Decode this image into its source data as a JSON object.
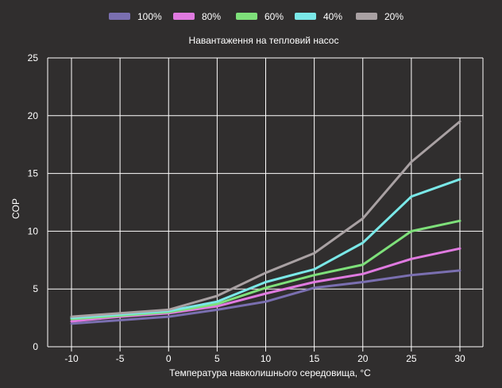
{
  "chart_data": {
    "type": "line",
    "title": "Навантаження на тепловий насос",
    "xlabel": "Температура навколишнього середовища, °C",
    "ylabel": "COP",
    "x": [
      -10,
      -5,
      0,
      5,
      10,
      15,
      20,
      25,
      30
    ],
    "x_tick_labels": [
      "-10",
      "-5",
      "0",
      "5",
      "10",
      "15",
      "20",
      "25",
      "30"
    ],
    "y_tick_labels": [
      "0",
      "5",
      "10",
      "15",
      "20",
      "25"
    ],
    "ylim": [
      0,
      25
    ],
    "y_ticks": [
      0,
      5,
      10,
      15,
      20,
      25
    ],
    "grid": true,
    "legend_position": "top",
    "series": [
      {
        "name": "100%",
        "color": "#7a6fb0",
        "values": [
          2.0,
          2.3,
          2.6,
          3.2,
          3.9,
          5.1,
          5.6,
          6.2,
          6.6
        ]
      },
      {
        "name": "80%",
        "color": "#e07ae0",
        "values": [
          2.2,
          2.6,
          2.9,
          3.5,
          4.6,
          5.6,
          6.3,
          7.6,
          8.5
        ]
      },
      {
        "name": "60%",
        "color": "#7ee07a",
        "values": [
          2.4,
          2.7,
          3.0,
          3.7,
          5.1,
          6.2,
          7.1,
          10.0,
          10.9
        ]
      },
      {
        "name": "40%",
        "color": "#7ae8e8",
        "values": [
          2.5,
          2.8,
          3.1,
          3.9,
          5.6,
          6.7,
          9.0,
          13.0,
          14.5
        ]
      },
      {
        "name": "20%",
        "color": "#a9a1a3",
        "values": [
          2.6,
          2.9,
          3.2,
          4.4,
          6.4,
          8.1,
          11.1,
          16.0,
          19.5
        ]
      }
    ]
  }
}
